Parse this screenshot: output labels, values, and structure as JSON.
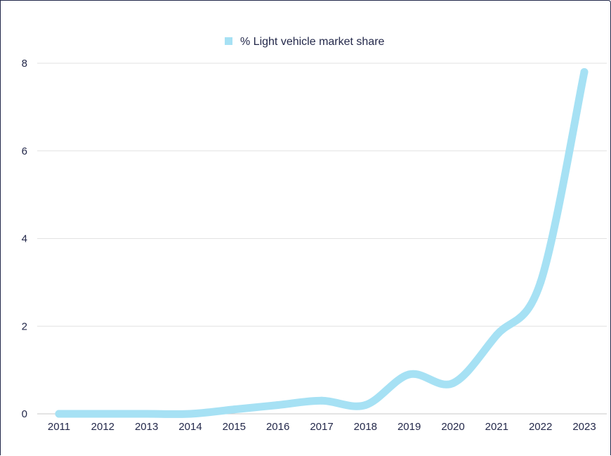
{
  "chart_data": {
    "type": "line",
    "title": "",
    "xlabel": "",
    "ylabel": "",
    "x": [
      "2011",
      "2012",
      "2013",
      "2014",
      "2015",
      "2016",
      "2017",
      "2018",
      "2019",
      "2020",
      "2021",
      "2022",
      "2023"
    ],
    "series": [
      {
        "name": "% Light vehicle market share",
        "values": [
          0,
          0,
          0,
          0,
          0.1,
          0.2,
          0.3,
          0.2,
          0.9,
          0.7,
          1.8,
          3.0,
          7.8
        ],
        "color": "#a6e1f4"
      }
    ],
    "ylim": [
      0,
      8
    ],
    "yticks": [
      "0",
      "2",
      "4",
      "6",
      "8"
    ],
    "grid": true,
    "legend": "top-center"
  }
}
